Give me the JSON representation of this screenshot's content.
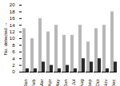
{
  "chart_data": {
    "type": "bar",
    "categories": [
      "Jan",
      "Feb",
      "Mar",
      "Apr",
      "May",
      "Jun",
      "Jul",
      "Aug",
      "Sep",
      "Oct",
      "Nov",
      "Dec"
    ],
    "series": [
      {
        "color": "#b8b8b8",
        "values": [
          13,
          10,
          16,
          12,
          14,
          11,
          11,
          14,
          9,
          13,
          14,
          18
        ]
      },
      {
        "color": "#2a2a2a",
        "values": [
          1,
          1,
          3,
          2,
          1,
          2,
          1,
          4,
          3,
          4,
          1,
          3
        ]
      }
    ],
    "ylabel": "No. detected",
    "ylim": [
      0,
      20
    ],
    "yticks": [
      0,
      2,
      4,
      6,
      8,
      10,
      12,
      14,
      16,
      18,
      20
    ]
  }
}
